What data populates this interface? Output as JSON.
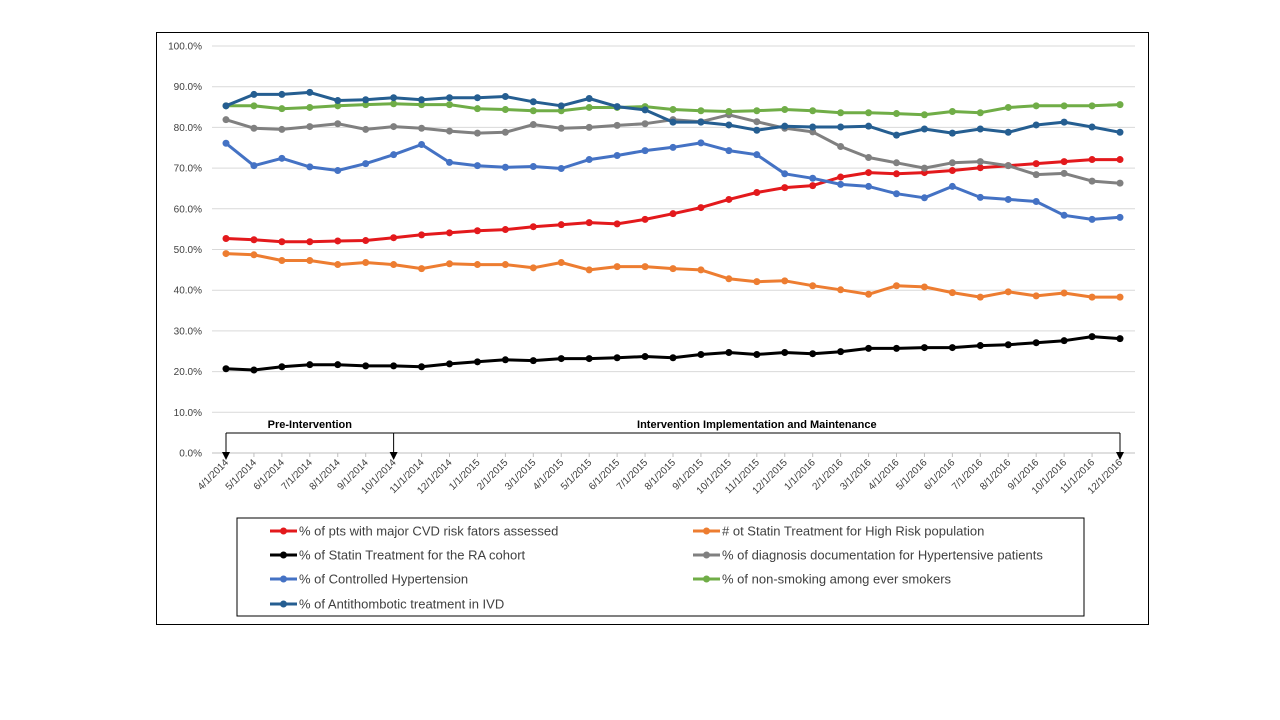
{
  "chart_data": {
    "type": "line",
    "categories": [
      "4/1/2014",
      "5/1/2014",
      "6/1/2014",
      "7/1/2014",
      "8/1/2014",
      "9/1/2014",
      "10/1/2014",
      "11/1/2014",
      "12/1/2014",
      "1/1/2015",
      "2/1/2015",
      "3/1/2015",
      "4/1/2015",
      "5/1/2015",
      "6/1/2015",
      "7/1/2015",
      "8/1/2015",
      "9/1/2015",
      "10/1/2015",
      "11/1/2015",
      "12/1/2015",
      "1/1/2016",
      "2/1/2016",
      "3/1/2016",
      "4/1/2016",
      "5/1/2016",
      "6/1/2016",
      "7/1/2016",
      "8/1/2016",
      "9/1/2016",
      "10/1/2016",
      "11/1/2016",
      "12/1/2016"
    ],
    "y_ticks": [
      "0.0%",
      "10.0%",
      "20.0%",
      "30.0%",
      "40.0%",
      "50.0%",
      "60.0%",
      "70.0%",
      "80.0%",
      "90.0%",
      "100.0%"
    ],
    "ylim": [
      0,
      100
    ],
    "grid": true,
    "legend_position": "bottom",
    "annotations": [
      {
        "text": "Pre-Intervention",
        "from": "4/1/2014",
        "to": "10/1/2014"
      },
      {
        "text": "Intervention Implementation and Maintenance",
        "from": "10/1/2014",
        "to": "12/1/2016"
      }
    ],
    "series": [
      {
        "name": "% of pts with major CVD risk fators assessed",
        "color": "#e3191c",
        "values": [
          52.7,
          52.4,
          51.9,
          51.9,
          52.1,
          52.2,
          52.9,
          53.6,
          54.1,
          54.6,
          54.9,
          55.6,
          56.1,
          56.6,
          56.3,
          57.4,
          58.8,
          60.3,
          62.3,
          64.0,
          65.2,
          65.7,
          67.8,
          68.9,
          68.6,
          68.9,
          69.4,
          70.1,
          70.6,
          71.1,
          71.6,
          72.1,
          72.1
        ]
      },
      {
        "name": "# ot Statin Treatment for High Risk population",
        "color": "#ed7d31",
        "values": [
          49.0,
          48.7,
          47.3,
          47.3,
          46.3,
          46.8,
          46.3,
          45.3,
          46.5,
          46.3,
          46.3,
          45.5,
          46.8,
          45.0,
          45.8,
          45.8,
          45.3,
          45.0,
          42.8,
          42.1,
          42.3,
          41.1,
          40.1,
          39.0,
          41.1,
          40.8,
          39.4,
          38.3,
          39.6,
          38.6,
          39.3,
          38.3,
          38.3
        ]
      },
      {
        "name": "% of Statin Treatment for the RA cohort",
        "color": "#000000",
        "values": [
          20.7,
          20.4,
          21.2,
          21.7,
          21.7,
          21.4,
          21.4,
          21.2,
          21.9,
          22.4,
          22.9,
          22.7,
          23.2,
          23.2,
          23.4,
          23.7,
          23.4,
          24.2,
          24.7,
          24.2,
          24.7,
          24.4,
          24.9,
          25.7,
          25.7,
          25.9,
          25.9,
          26.4,
          26.6,
          27.1,
          27.6,
          28.6,
          28.1
        ]
      },
      {
        "name": "% of diagnosis documentation for Hypertensive patients",
        "color": "#808080",
        "values": [
          81.9,
          79.8,
          79.5,
          80.2,
          80.9,
          79.5,
          80.2,
          79.8,
          79.1,
          78.6,
          78.8,
          80.7,
          79.8,
          80.0,
          80.5,
          80.9,
          81.9,
          81.4,
          83.1,
          81.4,
          79.8,
          78.9,
          75.3,
          72.6,
          71.3,
          70.0,
          71.3,
          71.6,
          70.6,
          68.4,
          68.7,
          66.8,
          66.3
        ]
      },
      {
        "name": "% of Controlled Hypertension",
        "color": "#4472c4",
        "values": [
          76.1,
          70.6,
          72.4,
          70.3,
          69.4,
          71.1,
          73.3,
          75.8,
          71.4,
          70.6,
          70.2,
          70.4,
          69.9,
          72.1,
          73.1,
          74.3,
          75.1,
          76.2,
          74.3,
          73.3,
          68.6,
          67.5,
          66.0,
          65.5,
          63.7,
          62.7,
          65.5,
          62.8,
          62.3,
          61.8,
          58.4,
          57.4,
          57.9
        ]
      },
      {
        "name": "% of non-smoking among ever smokers",
        "color": "#70ad47",
        "values": [
          85.3,
          85.3,
          84.6,
          84.9,
          85.3,
          85.6,
          85.8,
          85.6,
          85.6,
          84.6,
          84.4,
          84.1,
          84.1,
          84.9,
          84.9,
          85.1,
          84.4,
          84.1,
          83.9,
          84.1,
          84.4,
          84.1,
          83.6,
          83.6,
          83.4,
          83.1,
          83.9,
          83.6,
          84.9,
          85.3,
          85.3,
          85.3,
          85.6
        ]
      },
      {
        "name": "% of Antithombotic treatment in IVD",
        "color": "#255e91",
        "values": [
          85.3,
          88.1,
          88.1,
          88.6,
          86.6,
          86.8,
          87.3,
          86.8,
          87.3,
          87.3,
          87.6,
          86.3,
          85.3,
          87.1,
          85.1,
          84.3,
          81.3,
          81.3,
          80.6,
          79.3,
          80.3,
          80.1,
          80.1,
          80.3,
          78.1,
          79.6,
          78.6,
          79.6,
          78.8,
          80.6,
          81.3,
          80.1,
          78.8
        ]
      }
    ]
  }
}
